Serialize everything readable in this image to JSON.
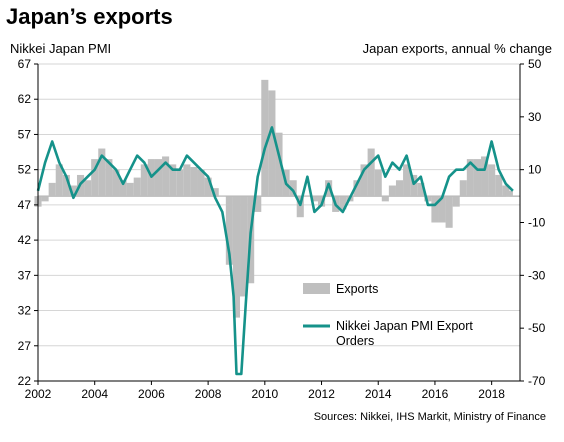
{
  "chart_data": {
    "type": "bar+line",
    "title": "Japan’s exports",
    "left_axis_label": "Nikkei Japan PMI",
    "right_axis_label": "Japan exports, annual  % change",
    "source": "Sources: Nikkei, IHS Markit, Ministry of Finance",
    "x_ticks": [
      "2002",
      "2004",
      "2006",
      "2008",
      "2010",
      "2012",
      "2014",
      "2016",
      "2018"
    ],
    "left_ylim": [
      22,
      67
    ],
    "left_ticks": [
      22,
      27,
      32,
      37,
      42,
      47,
      52,
      57,
      62,
      67
    ],
    "right_ylim": [
      -70,
      50
    ],
    "right_ticks": [
      -70,
      -50,
      -30,
      -10,
      10,
      30,
      50
    ],
    "grid": true,
    "legend_position": "lower-right",
    "colors": {
      "exports": "#bfbfbf",
      "pmi": "#15928a"
    },
    "series": [
      {
        "name": "Exports",
        "axis": "right",
        "kind": "bar",
        "points": [
          [
            2002.0,
            -4
          ],
          [
            2002.25,
            -2
          ],
          [
            2002.5,
            5
          ],
          [
            2002.75,
            12
          ],
          [
            2003.0,
            8
          ],
          [
            2003.25,
            4
          ],
          [
            2003.5,
            8
          ],
          [
            2003.75,
            6
          ],
          [
            2004.0,
            14
          ],
          [
            2004.25,
            18
          ],
          [
            2004.5,
            14
          ],
          [
            2004.75,
            10
          ],
          [
            2005.0,
            6
          ],
          [
            2005.25,
            5
          ],
          [
            2005.5,
            7
          ],
          [
            2005.75,
            12
          ],
          [
            2006.0,
            14
          ],
          [
            2006.25,
            14
          ],
          [
            2006.5,
            15
          ],
          [
            2006.75,
            12
          ],
          [
            2007.0,
            10
          ],
          [
            2007.25,
            12
          ],
          [
            2007.5,
            11
          ],
          [
            2007.75,
            10
          ],
          [
            2008.0,
            7
          ],
          [
            2008.25,
            3
          ],
          [
            2008.5,
            0
          ],
          [
            2008.75,
            -26
          ],
          [
            2009.0,
            -46
          ],
          [
            2009.25,
            -38
          ],
          [
            2009.5,
            -33
          ],
          [
            2009.75,
            -6
          ],
          [
            2010.0,
            44
          ],
          [
            2010.25,
            40
          ],
          [
            2010.5,
            24
          ],
          [
            2010.75,
            10
          ],
          [
            2011.0,
            6
          ],
          [
            2011.25,
            -8
          ],
          [
            2011.5,
            0
          ],
          [
            2011.75,
            -2
          ],
          [
            2012.0,
            -4
          ],
          [
            2012.25,
            6
          ],
          [
            2012.5,
            -6
          ],
          [
            2012.75,
            -5
          ],
          [
            2013.0,
            -2
          ],
          [
            2013.25,
            6
          ],
          [
            2013.5,
            12
          ],
          [
            2013.75,
            18
          ],
          [
            2014.0,
            10
          ],
          [
            2014.25,
            -2
          ],
          [
            2014.5,
            4
          ],
          [
            2014.75,
            6
          ],
          [
            2015.0,
            12
          ],
          [
            2015.25,
            8
          ],
          [
            2015.5,
            5
          ],
          [
            2015.75,
            -2
          ],
          [
            2016.0,
            -10
          ],
          [
            2016.25,
            -10
          ],
          [
            2016.5,
            -12
          ],
          [
            2016.75,
            -4
          ],
          [
            2017.0,
            6
          ],
          [
            2017.25,
            14
          ],
          [
            2017.5,
            14
          ],
          [
            2017.75,
            15
          ],
          [
            2018.0,
            12
          ],
          [
            2018.25,
            8
          ],
          [
            2018.5,
            4
          ],
          [
            2018.625,
            2
          ]
        ]
      },
      {
        "name": "Nikkei Japan PMI Export Orders",
        "axis": "left",
        "kind": "line",
        "points": [
          [
            2002.0,
            49
          ],
          [
            2002.25,
            53
          ],
          [
            2002.5,
            56
          ],
          [
            2002.75,
            53
          ],
          [
            2003.0,
            51
          ],
          [
            2003.25,
            48
          ],
          [
            2003.5,
            50
          ],
          [
            2003.75,
            51
          ],
          [
            2004.0,
            52
          ],
          [
            2004.25,
            54
          ],
          [
            2004.5,
            53
          ],
          [
            2004.75,
            52
          ],
          [
            2005.0,
            50
          ],
          [
            2005.25,
            52
          ],
          [
            2005.5,
            54
          ],
          [
            2005.75,
            53
          ],
          [
            2006.0,
            51
          ],
          [
            2006.25,
            52
          ],
          [
            2006.5,
            53
          ],
          [
            2006.75,
            52
          ],
          [
            2007.0,
            52
          ],
          [
            2007.25,
            54
          ],
          [
            2007.5,
            53
          ],
          [
            2007.75,
            52
          ],
          [
            2008.0,
            51
          ],
          [
            2008.25,
            48
          ],
          [
            2008.5,
            46
          ],
          [
            2008.75,
            40
          ],
          [
            2008.9,
            34
          ],
          [
            2009.0,
            23
          ],
          [
            2009.17,
            23
          ],
          [
            2009.33,
            33
          ],
          [
            2009.5,
            43
          ],
          [
            2009.75,
            51
          ],
          [
            2010.0,
            55
          ],
          [
            2010.25,
            58
          ],
          [
            2010.5,
            54
          ],
          [
            2010.75,
            50
          ],
          [
            2011.0,
            49
          ],
          [
            2011.25,
            47
          ],
          [
            2011.5,
            51
          ],
          [
            2011.75,
            46
          ],
          [
            2012.0,
            47
          ],
          [
            2012.25,
            50
          ],
          [
            2012.5,
            47
          ],
          [
            2012.75,
            46
          ],
          [
            2013.0,
            48
          ],
          [
            2013.25,
            50
          ],
          [
            2013.5,
            52
          ],
          [
            2013.75,
            53
          ],
          [
            2014.0,
            54
          ],
          [
            2014.25,
            51
          ],
          [
            2014.5,
            53
          ],
          [
            2014.75,
            52
          ],
          [
            2015.0,
            54
          ],
          [
            2015.25,
            50
          ],
          [
            2015.5,
            51
          ],
          [
            2015.75,
            47
          ],
          [
            2016.0,
            47
          ],
          [
            2016.25,
            48
          ],
          [
            2016.5,
            51
          ],
          [
            2016.75,
            52
          ],
          [
            2017.0,
            52
          ],
          [
            2017.25,
            53
          ],
          [
            2017.5,
            52
          ],
          [
            2017.75,
            52
          ],
          [
            2018.0,
            56
          ],
          [
            2018.25,
            52
          ],
          [
            2018.5,
            50
          ],
          [
            2018.75,
            49
          ]
        ]
      }
    ]
  }
}
